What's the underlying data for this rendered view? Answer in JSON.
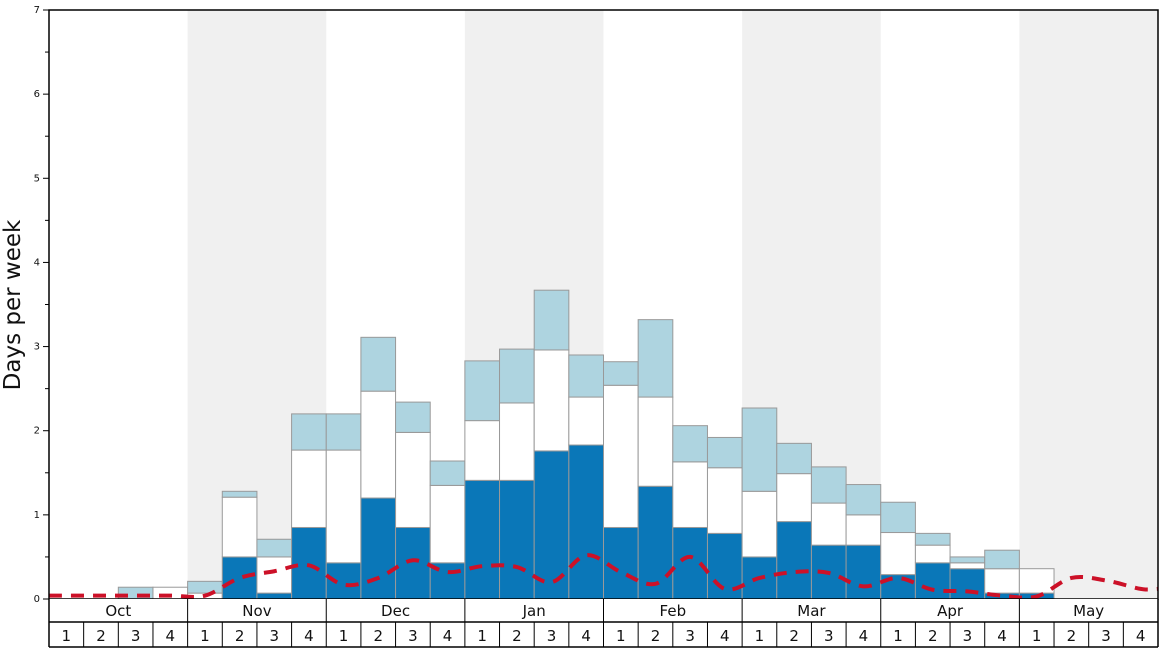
{
  "chart_data": {
    "type": "bar",
    "ylabel": "Days per week",
    "ylim": [
      0,
      7
    ],
    "yticks": [
      0,
      1,
      2,
      3,
      4,
      5,
      6,
      7
    ],
    "months": [
      "Oct",
      "Nov",
      "Dec",
      "Jan",
      "Feb",
      "Mar",
      "Apr",
      "May"
    ],
    "weeks": [
      "1",
      "2",
      "3",
      "4"
    ],
    "stacked": true,
    "series": [
      {
        "color": "#0a77b8",
        "values": [
          0,
          0,
          0,
          0,
          0,
          0.5,
          0.07,
          0.85,
          0.43,
          1.2,
          0.85,
          0.43,
          1.41,
          1.41,
          1.76,
          1.83,
          0.85,
          1.34,
          0.85,
          0.78,
          0.5,
          0.92,
          0.64,
          0.64,
          0.29,
          0.43,
          0.36,
          0.07,
          0.07,
          0,
          0,
          0
        ]
      },
      {
        "color": "#ffffff",
        "values": [
          0,
          0,
          0,
          0.14,
          0.07,
          0.71,
          0.43,
          0.92,
          1.34,
          1.27,
          1.13,
          0.92,
          0.71,
          0.92,
          1.2,
          0.57,
          1.69,
          1.06,
          0.78,
          0.78,
          0.78,
          0.57,
          0.5,
          0.36,
          0.5,
          0.21,
          0.07,
          0.29,
          0.29,
          0,
          0,
          0
        ]
      },
      {
        "color": "#aed4e0",
        "values": [
          0,
          0,
          0.14,
          0,
          0.14,
          0.07,
          0.21,
          0.43,
          0.43,
          0.64,
          0.36,
          0.29,
          0.71,
          0.64,
          0.71,
          0.5,
          0.28,
          0.92,
          0.43,
          0.36,
          0.99,
          0.36,
          0.43,
          0.36,
          0.36,
          0.14,
          0.07,
          0.22,
          0,
          0,
          0,
          0
        ]
      },
      {
        "type": "line",
        "style": "dashed",
        "color": "#cc1128",
        "values": [
          0.04,
          0.04,
          0.04,
          0.04,
          0.04,
          0.25,
          0.33,
          0.4,
          0.17,
          0.25,
          0.46,
          0.32,
          0.39,
          0.38,
          0.2,
          0.52,
          0.32,
          0.18,
          0.5,
          0.12,
          0.25,
          0.32,
          0.31,
          0.15,
          0.25,
          0.11,
          0.09,
          0.04,
          0.03,
          0.25,
          0.22,
          0.12
        ]
      }
    ],
    "grid": false
  }
}
